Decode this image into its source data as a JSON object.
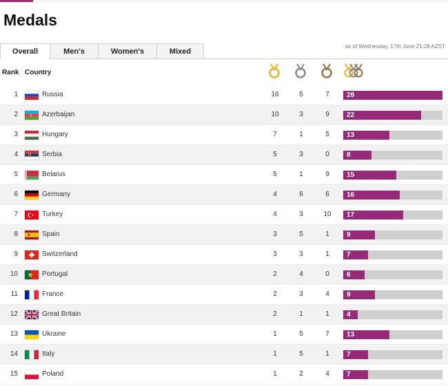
{
  "page": {
    "title": "Medals"
  },
  "tabs": [
    {
      "label": "Overall",
      "active": true
    },
    {
      "label": "Men's",
      "active": false
    },
    {
      "label": "Women's",
      "active": false
    },
    {
      "label": "Mixed",
      "active": false
    }
  ],
  "as_of": "as of Wednesday, 17th June 21:28 AZST",
  "table": {
    "headers": {
      "rank": "Rank",
      "country": "Country"
    },
    "medal_icons": [
      "gold-medal-icon",
      "silver-medal-icon",
      "bronze-medal-icon",
      "total-medals-icon"
    ],
    "colors": {
      "bar_fill": "#962a78",
      "bar_track": "#cfcfcf",
      "gold": "#e8b923",
      "silver": "#8c8c8c",
      "bronze": "#9a7350"
    },
    "max_total": 28,
    "rows": [
      {
        "rank": "1",
        "country": "Russia",
        "flag": "russia",
        "gold": "16",
        "silver": "5",
        "bronze": "7",
        "total": "28"
      },
      {
        "rank": "2",
        "country": "Azerbaijan",
        "flag": "azerbaijan",
        "gold": "10",
        "silver": "3",
        "bronze": "9",
        "total": "22"
      },
      {
        "rank": "3",
        "country": "Hungary",
        "flag": "hungary",
        "gold": "7",
        "silver": "1",
        "bronze": "5",
        "total": "13"
      },
      {
        "rank": "4",
        "country": "Serbia",
        "flag": "serbia",
        "gold": "5",
        "silver": "3",
        "bronze": "0",
        "total": "8"
      },
      {
        "rank": "5",
        "country": "Belarus",
        "flag": "belarus",
        "gold": "5",
        "silver": "1",
        "bronze": "9",
        "total": "15"
      },
      {
        "rank": "6",
        "country": "Germany",
        "flag": "germany",
        "gold": "4",
        "silver": "6",
        "bronze": "6",
        "total": "16"
      },
      {
        "rank": "7",
        "country": "Turkey",
        "flag": "turkey",
        "gold": "4",
        "silver": "3",
        "bronze": "10",
        "total": "17"
      },
      {
        "rank": "8",
        "country": "Spain",
        "flag": "spain",
        "gold": "3",
        "silver": "5",
        "bronze": "1",
        "total": "9"
      },
      {
        "rank": "9",
        "country": "Switzerland",
        "flag": "switzerland",
        "gold": "3",
        "silver": "3",
        "bronze": "1",
        "total": "7"
      },
      {
        "rank": "10",
        "country": "Portugal",
        "flag": "portugal",
        "gold": "2",
        "silver": "4",
        "bronze": "0",
        "total": "6"
      },
      {
        "rank": "11",
        "country": "France",
        "flag": "france",
        "gold": "2",
        "silver": "3",
        "bronze": "4",
        "total": "9"
      },
      {
        "rank": "12",
        "country": "Great Britain",
        "flag": "uk",
        "gold": "2",
        "silver": "1",
        "bronze": "1",
        "total": "4"
      },
      {
        "rank": "13",
        "country": "Ukraine",
        "flag": "ukraine",
        "gold": "1",
        "silver": "5",
        "bronze": "7",
        "total": "13"
      },
      {
        "rank": "14",
        "country": "Italy",
        "flag": "italy",
        "gold": "1",
        "silver": "5",
        "bronze": "1",
        "total": "7"
      },
      {
        "rank": "15",
        "country": "Poland",
        "flag": "poland",
        "gold": "1",
        "silver": "2",
        "bronze": "4",
        "total": "7"
      }
    ]
  }
}
